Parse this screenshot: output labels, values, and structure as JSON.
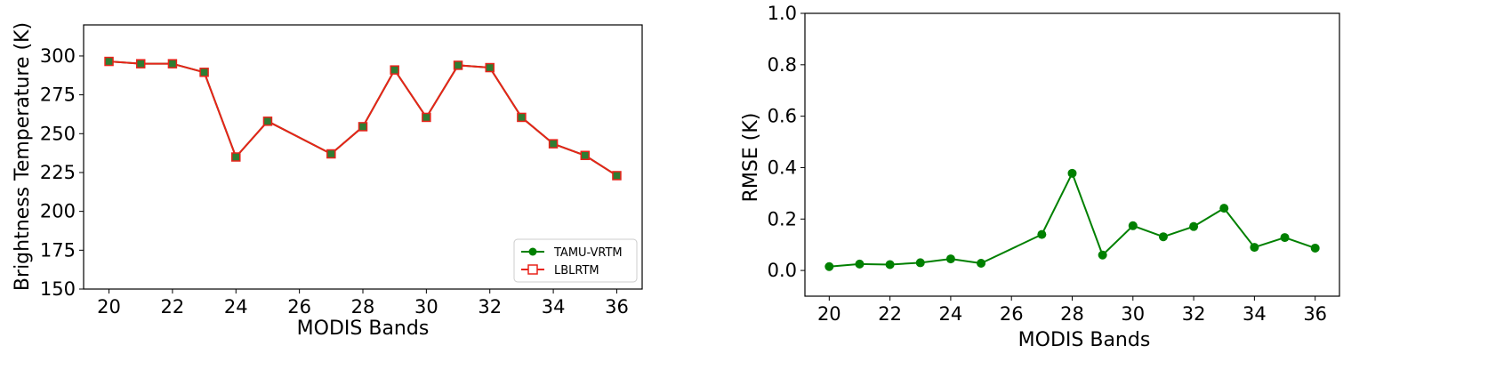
{
  "colors": {
    "tamu": "#008000",
    "lblrtm": "#e8231a",
    "lblrtm_face": "#2e7d32"
  },
  "chart_data": [
    {
      "type": "line",
      "xlabel": "MODIS Bands",
      "ylabel": "Brightness Temperature (K)",
      "xlim": [
        19.2,
        36.8
      ],
      "ylim": [
        150,
        320
      ],
      "xticks": [
        20,
        22,
        24,
        26,
        28,
        30,
        32,
        34,
        36
      ],
      "yticks": [
        150,
        175,
        200,
        225,
        250,
        275,
        300
      ],
      "x": [
        20,
        21,
        22,
        23,
        24,
        25,
        27,
        28,
        29,
        30,
        31,
        32,
        33,
        34,
        35,
        36
      ],
      "series": [
        {
          "name": "TAMU-VRTM",
          "marker": "circle",
          "values": [
            296.5,
            295.0,
            295.0,
            289.5,
            235.0,
            258.0,
            237.0,
            254.5,
            291.0,
            260.5,
            294.0,
            292.5,
            260.5,
            243.5,
            236.0,
            223.0
          ]
        },
        {
          "name": "LBLRTM",
          "marker": "square",
          "values": [
            296.5,
            295.0,
            295.0,
            289.5,
            235.0,
            258.0,
            237.0,
            254.5,
            291.0,
            260.5,
            294.0,
            292.5,
            260.5,
            243.5,
            236.0,
            223.0
          ]
        }
      ],
      "legend": "lower-right",
      "grid": false
    },
    {
      "type": "line",
      "xlabel": "MODIS Bands",
      "ylabel": "RMSE (K)",
      "xlim": [
        19.2,
        36.8
      ],
      "ylim": [
        -0.1,
        1.0
      ],
      "xticks": [
        20,
        22,
        24,
        26,
        28,
        30,
        32,
        34,
        36
      ],
      "yticks": [
        "0.0",
        "0.2",
        "0.4",
        "0.6",
        "0.8",
        "1.0"
      ],
      "x": [
        20,
        21,
        22,
        23,
        24,
        25,
        27,
        28,
        29,
        30,
        31,
        32,
        33,
        34,
        35,
        36
      ],
      "series": [
        {
          "marker": "circle",
          "values": [
            0.015,
            0.025,
            0.023,
            0.03,
            0.045,
            0.028,
            0.14,
            0.378,
            0.06,
            0.174,
            0.131,
            0.171,
            0.242,
            0.09,
            0.128,
            0.087
          ]
        }
      ],
      "grid": false
    }
  ]
}
